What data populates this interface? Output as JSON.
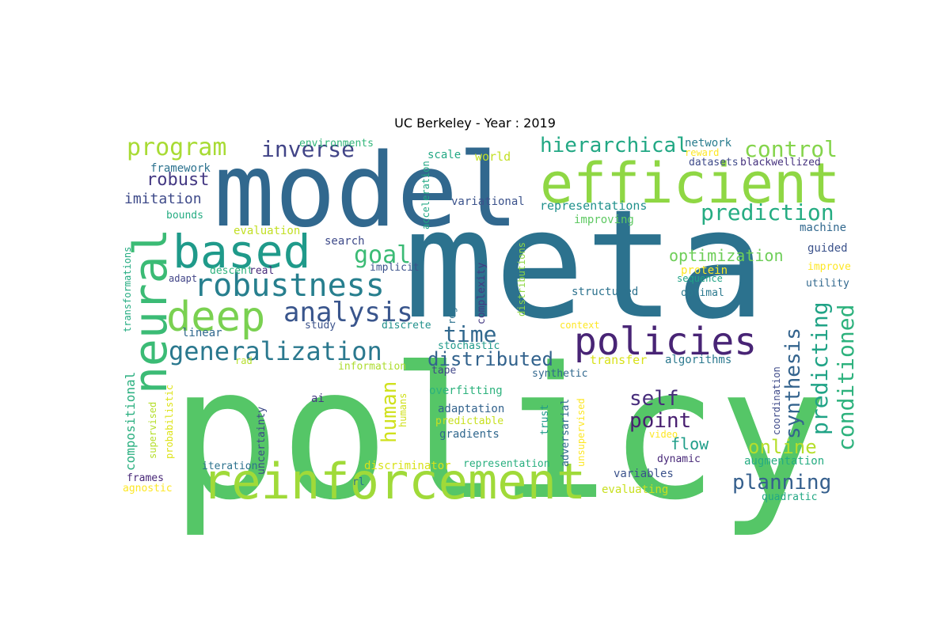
{
  "title": "UC Berkeley - Year : 2019",
  "words": [
    {
      "text": "policy",
      "color": "#55c667"
    },
    {
      "text": "meta",
      "color": "#2c728e"
    },
    {
      "text": "model",
      "color": "#31688e"
    },
    {
      "text": "efficient",
      "color": "#8fd744"
    },
    {
      "text": "reinforcement",
      "color": "#a0da39"
    },
    {
      "text": "neural",
      "color": "#3bbb75"
    },
    {
      "text": "based",
      "color": "#1f9a8a"
    },
    {
      "text": "robustness",
      "color": "#277f8e"
    },
    {
      "text": "deep",
      "color": "#7ad151"
    },
    {
      "text": "policies",
      "color": "#482475"
    },
    {
      "text": "generalization",
      "color": "#2a788e"
    },
    {
      "text": "analysis",
      "color": "#39558c"
    },
    {
      "text": "program",
      "color": "#a8db34"
    },
    {
      "text": "inverse",
      "color": "#414487"
    },
    {
      "text": "hierarchical",
      "color": "#22a884"
    },
    {
      "text": "control",
      "color": "#84d44b"
    },
    {
      "text": "prediction",
      "color": "#25ac82"
    },
    {
      "text": "goal",
      "color": "#3bbb75"
    },
    {
      "text": "time",
      "color": "#31688e"
    },
    {
      "text": "distributed",
      "color": "#33638d"
    },
    {
      "text": "conditioned",
      "color": "#2db27d"
    },
    {
      "text": "predicting",
      "color": "#20a386"
    },
    {
      "text": "synthesis",
      "color": "#33638d"
    },
    {
      "text": "planning",
      "color": "#355f8d"
    },
    {
      "text": "self",
      "color": "#472d7b"
    },
    {
      "text": "point",
      "color": "#481f70"
    },
    {
      "text": "human",
      "color": "#d0e11c"
    },
    {
      "text": "online",
      "color": "#b5de2b"
    },
    {
      "text": "robust",
      "color": "#443983"
    },
    {
      "text": "imitation",
      "color": "#3e4a89"
    },
    {
      "text": "optimization",
      "color": "#6ece58"
    },
    {
      "text": "flow",
      "color": "#1f9e89"
    },
    {
      "text": "compositional",
      "color": "#29af7f"
    },
    {
      "text": "representations",
      "color": "#21918c"
    },
    {
      "text": "framework",
      "color": "#2c728e"
    },
    {
      "text": "network",
      "color": "#287c8e"
    },
    {
      "text": "world",
      "color": "#c2df23"
    },
    {
      "text": "scale",
      "color": "#22a884"
    },
    {
      "text": "environments",
      "color": "#32b67a"
    },
    {
      "text": "datasets",
      "color": "#3e4a89"
    },
    {
      "text": "blackwellized",
      "color": "#46327e"
    },
    {
      "text": "reward",
      "color": "#fde725"
    },
    {
      "text": "variational",
      "color": "#3b528b"
    },
    {
      "text": "improving",
      "color": "#5ec962"
    },
    {
      "text": "bounds",
      "color": "#25ac82"
    },
    {
      "text": "evaluation",
      "color": "#c2df23"
    },
    {
      "text": "search",
      "color": "#3e4a89"
    },
    {
      "text": "machine",
      "color": "#31688e"
    },
    {
      "text": "guided",
      "color": "#3b528b"
    },
    {
      "text": "improve",
      "color": "#fde725"
    },
    {
      "text": "utility",
      "color": "#31688e"
    },
    {
      "text": "protein",
      "color": "#fde725"
    },
    {
      "text": "sequence",
      "color": "#20a386"
    },
    {
      "text": "optimal",
      "color": "#2a788e"
    },
    {
      "text": "structured",
      "color": "#2c728e"
    },
    {
      "text": "adapt",
      "color": "#414487"
    },
    {
      "text": "descent",
      "color": "#2db27d"
    },
    {
      "text": "real",
      "color": "#472d7b"
    },
    {
      "text": "implicit",
      "color": "#3b528b"
    },
    {
      "text": "study",
      "color": "#3b528b"
    },
    {
      "text": "discrete",
      "color": "#21918c"
    },
    {
      "text": "linear",
      "color": "#31688e"
    },
    {
      "text": "context",
      "color": "#fde725"
    },
    {
      "text": "stochastic",
      "color": "#1f9a8a"
    },
    {
      "text": "transfer",
      "color": "#d8e219"
    },
    {
      "text": "algorithms",
      "color": "#2a788e"
    },
    {
      "text": "rad",
      "color": "#b5de2b"
    },
    {
      "text": "information",
      "color": "#addc30"
    },
    {
      "text": "tape",
      "color": "#404688"
    },
    {
      "text": "synthetic",
      "color": "#31688e"
    },
    {
      "text": "overfitting",
      "color": "#2db27d"
    },
    {
      "text": "ai",
      "color": "#443983"
    },
    {
      "text": "adaptation",
      "color": "#33638d"
    },
    {
      "text": "predictable",
      "color": "#c8e020"
    },
    {
      "text": "gradients",
      "color": "#31688e"
    },
    {
      "text": "video",
      "color": "#fde725"
    },
    {
      "text": "dynamic",
      "color": "#482878"
    },
    {
      "text": "augmentation",
      "color": "#25ac82"
    },
    {
      "text": "iteration",
      "color": "#2c728e"
    },
    {
      "text": "discriminator",
      "color": "#d8e219"
    },
    {
      "text": "representation",
      "color": "#29af7f"
    },
    {
      "text": "variables",
      "color": "#3b528b"
    },
    {
      "text": "frames",
      "color": "#482878"
    },
    {
      "text": "agnostic",
      "color": "#fde725"
    },
    {
      "text": "rl",
      "color": "#2c728e"
    },
    {
      "text": "evaluating",
      "color": "#c8e020"
    },
    {
      "text": "quadratic",
      "color": "#22a884"
    },
    {
      "text": "transformations",
      "color": "#25ac82"
    },
    {
      "text": "supervised",
      "color": "#b5de2b"
    },
    {
      "text": "probabilistic",
      "color": "#dde318"
    },
    {
      "text": "uncertainty",
      "color": "#3e4a89"
    },
    {
      "text": "acceleration",
      "color": "#22a884"
    },
    {
      "text": "regularized",
      "color": "#2c728e"
    },
    {
      "text": "complexity",
      "color": "#443983"
    },
    {
      "text": "distributions",
      "color": "#8fd744"
    },
    {
      "text": "humans",
      "color": "#d0e11c"
    },
    {
      "text": "trust",
      "color": "#1f9a8a"
    },
    {
      "text": "adversarial",
      "color": "#31688e"
    },
    {
      "text": "unsupervised",
      "color": "#fde725"
    },
    {
      "text": "coordination",
      "color": "#3e4a89"
    }
  ]
}
